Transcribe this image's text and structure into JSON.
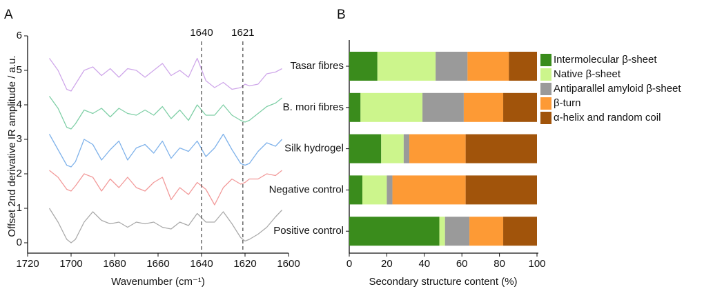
{
  "chart_data": [
    {
      "type": "line",
      "panel_label": "A",
      "x_label": "Wavenumber (cm⁻¹)",
      "y_label": "Offset  2nd derivative IR amplitude / a.u.",
      "xlim": [
        1720,
        1600
      ],
      "xticks": [
        1720,
        1700,
        1680,
        1660,
        1640,
        1620,
        1600
      ],
      "ylim": [
        -0.3,
        6
      ],
      "yticks": [
        0,
        1,
        2,
        3,
        4,
        5,
        6
      ],
      "vlines": [
        1640,
        1621
      ],
      "x": [
        1710,
        1706,
        1702,
        1700,
        1698,
        1694,
        1690,
        1686,
        1682,
        1678,
        1674,
        1670,
        1666,
        1662,
        1658,
        1654,
        1650,
        1646,
        1642,
        1638,
        1634,
        1630,
        1626,
        1622,
        1620,
        1618,
        1614,
        1610,
        1606,
        1603
      ],
      "series": [
        {
          "color": "#aaaaaa",
          "values": [
            1.0,
            0.6,
            0.1,
            0.0,
            0.1,
            0.6,
            0.9,
            0.65,
            0.55,
            0.6,
            0.45,
            0.6,
            0.55,
            0.6,
            0.45,
            0.4,
            0.6,
            0.5,
            0.85,
            0.6,
            0.6,
            0.9,
            0.55,
            0.15,
            0.05,
            0.1,
            0.25,
            0.45,
            0.75,
            0.95
          ]
        },
        {
          "color": "#f29a9a",
          "values": [
            2.1,
            1.9,
            1.55,
            1.5,
            1.65,
            2.0,
            1.9,
            1.5,
            1.85,
            1.6,
            1.9,
            1.6,
            1.5,
            1.75,
            1.9,
            1.25,
            1.6,
            1.4,
            1.75,
            1.55,
            1.1,
            1.6,
            1.85,
            1.7,
            1.75,
            1.85,
            1.85,
            2.0,
            1.95,
            2.1
          ]
        },
        {
          "color": "#7fb2ea",
          "values": [
            3.15,
            2.7,
            2.25,
            2.2,
            2.35,
            3.0,
            2.85,
            2.4,
            2.7,
            2.95,
            2.4,
            2.75,
            2.85,
            2.6,
            2.95,
            2.45,
            2.75,
            2.65,
            2.95,
            2.5,
            2.75,
            3.15,
            2.7,
            2.3,
            2.25,
            2.3,
            2.65,
            2.9,
            2.8,
            3.0
          ]
        },
        {
          "color": "#7fcfa6",
          "values": [
            4.25,
            3.9,
            3.35,
            3.3,
            3.45,
            3.85,
            3.75,
            3.9,
            3.65,
            3.9,
            3.75,
            3.7,
            3.85,
            3.7,
            3.95,
            3.6,
            3.85,
            3.55,
            4.0,
            3.7,
            3.7,
            4.0,
            3.7,
            3.55,
            3.5,
            3.55,
            3.75,
            3.95,
            4.05,
            4.2
          ]
        },
        {
          "color": "#cfa7ea",
          "values": [
            5.35,
            5.0,
            4.45,
            4.4,
            4.6,
            5.0,
            5.1,
            4.85,
            5.05,
            4.8,
            5.05,
            5.0,
            4.8,
            5.0,
            5.2,
            4.85,
            5.0,
            4.8,
            5.35,
            4.7,
            4.5,
            4.65,
            4.45,
            4.5,
            4.6,
            4.55,
            4.6,
            4.9,
            4.95,
            5.05
          ]
        }
      ]
    },
    {
      "type": "bar",
      "orientation": "horizontal",
      "stacked": true,
      "panel_label": "B",
      "x_label": "Secondary structure content (%)",
      "xlim": [
        0,
        100
      ],
      "xticks": [
        0,
        20,
        40,
        60,
        80,
        100
      ],
      "categories": [
        "Tasar fibres",
        "B. mori fibres",
        "Silk hydrogel",
        "Negative control",
        "Positive control"
      ],
      "legend": "upper right",
      "series": [
        {
          "name": "Intermolecular β-sheet",
          "color": "#3a8c1c",
          "values": [
            15,
            6,
            17,
            7,
            48
          ]
        },
        {
          "name": "Native β-sheet",
          "color": "#ccf58c",
          "values": [
            31,
            33,
            12,
            13,
            3
          ]
        },
        {
          "name": "Antiparallel amyloid β-sheet",
          "color": "#9a9a9a",
          "values": [
            17,
            22,
            3,
            3,
            13
          ]
        },
        {
          "name": "β-turn",
          "color": "#fd9a35",
          "values": [
            22,
            21,
            30,
            39,
            18
          ]
        },
        {
          "name": "α-helix and random coil",
          "color": "#a1540b",
          "values": [
            15,
            18,
            38,
            38,
            18
          ]
        }
      ]
    }
  ]
}
